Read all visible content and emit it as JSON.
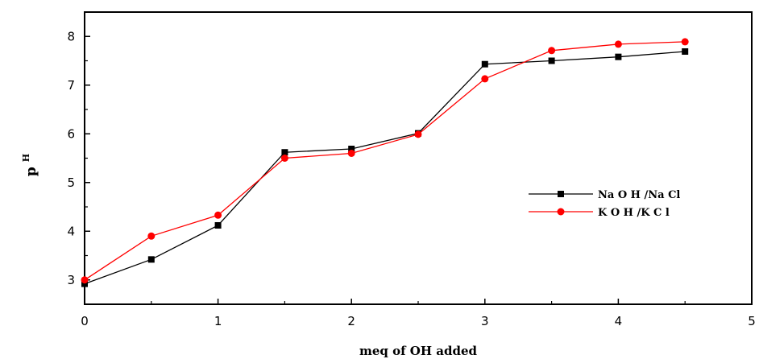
{
  "chart_data": {
    "type": "line",
    "title": "",
    "xlabel": "meq of OH added",
    "ylabel": "p",
    "ylabel_superscript": "H",
    "xlim": [
      0,
      5
    ],
    "ylim": [
      2.5,
      8.5
    ],
    "x_ticks": [
      "0",
      "1",
      "2",
      "3",
      "4",
      "5"
    ],
    "y_ticks": [
      "3",
      "4",
      "5",
      "6",
      "7",
      "8"
    ],
    "grid": false,
    "legend_position": "right",
    "x": [
      0,
      0.5,
      1,
      1.5,
      2,
      2.5,
      3,
      3.5,
      4,
      4.5
    ],
    "series": [
      {
        "name": "Na O H /Na Cl",
        "color": "#000000",
        "marker": "square",
        "values": [
          2.92,
          3.42,
          4.12,
          5.62,
          5.69,
          6.01,
          7.43,
          7.5,
          7.58,
          7.69
        ]
      },
      {
        "name": "K O H /K C l",
        "color": "#ff0000",
        "marker": "circle",
        "values": [
          3.0,
          3.9,
          4.33,
          5.5,
          5.6,
          5.99,
          7.13,
          7.71,
          7.84,
          7.89
        ]
      }
    ]
  }
}
